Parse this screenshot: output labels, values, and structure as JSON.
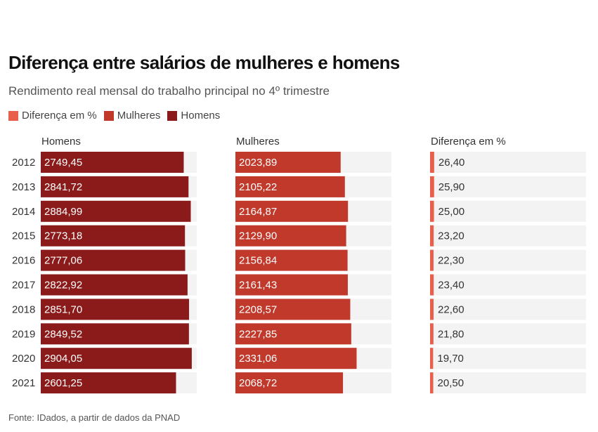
{
  "title": "Diferença entre salários de mulheres e homens",
  "subtitle": "Rendimento real mensal do trabalho principal no 4º trimestre",
  "legend": [
    {
      "label": "Diferença em %",
      "color": "#e8604c"
    },
    {
      "label": "Mulheres",
      "color": "#c0392b"
    },
    {
      "label": "Homens",
      "color": "#8b1a1a"
    }
  ],
  "source": "Fonte: IDados, a partir de dados da PNAD",
  "chart_data": {
    "type": "bar",
    "categories": [
      "2012",
      "2013",
      "2014",
      "2015",
      "2016",
      "2017",
      "2018",
      "2019",
      "2020",
      "2021"
    ],
    "series": [
      {
        "name": "Homens",
        "color": "#8b1a1a",
        "values": [
          2749.45,
          2841.72,
          2884.99,
          2773.18,
          2777.06,
          2822.92,
          2851.7,
          2849.52,
          2904.05,
          2601.25
        ],
        "labels": [
          "2749,45",
          "2841,72",
          "2884,99",
          "2773,18",
          "2777,06",
          "2822,92",
          "2851,70",
          "2849,52",
          "2904,05",
          "2601,25"
        ]
      },
      {
        "name": "Mulheres",
        "color": "#c0392b",
        "values": [
          2023.89,
          2105.22,
          2164.87,
          2129.9,
          2156.84,
          2161.43,
          2208.57,
          2227.85,
          2331.06,
          2068.72
        ],
        "labels": [
          "2023,89",
          "2105,22",
          "2164,87",
          "2129,90",
          "2156,84",
          "2161,43",
          "2208,57",
          "2227,85",
          "2331,06",
          "2068,72"
        ]
      },
      {
        "name": "Diferença em %",
        "color": "#e8604c",
        "values": [
          26.4,
          25.9,
          25.0,
          23.2,
          22.3,
          23.4,
          22.6,
          21.8,
          19.7,
          20.5
        ],
        "labels": [
          "26,40",
          "25,90",
          "25,00",
          "23,20",
          "22,30",
          "23,40",
          "22,60",
          "21,80",
          "19,70",
          "20,50"
        ]
      }
    ],
    "panel_max": [
      3000,
      3000,
      1000
    ],
    "grid": false,
    "legend_position": "top-left"
  }
}
